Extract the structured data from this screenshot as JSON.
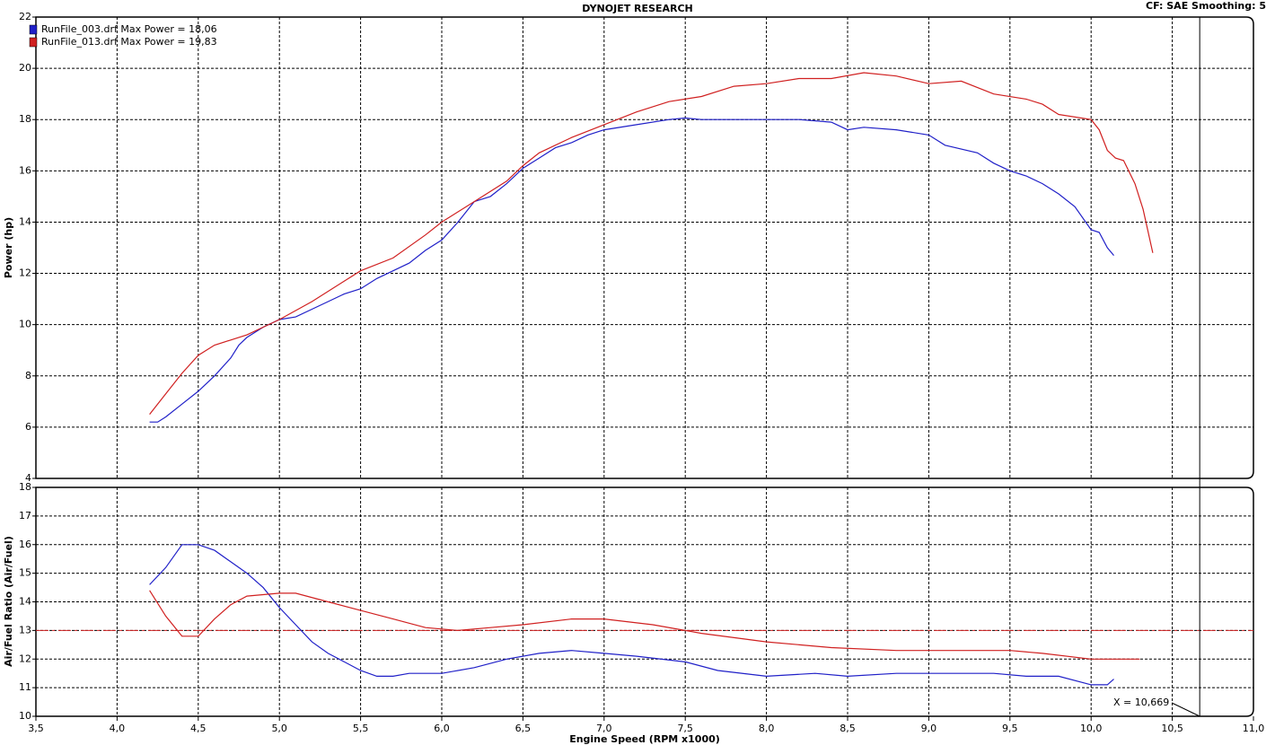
{
  "header": {
    "title": "DYNOJET RESEARCH",
    "settings": "CF: SAE  Smoothing: 5"
  },
  "cursor": {
    "value": 10.669,
    "label": "X = 10,669"
  },
  "chart_data": [
    {
      "type": "line",
      "ylabel": "Power (hp)",
      "ylim": [
        4,
        22
      ],
      "yticks": [
        4,
        6,
        8,
        10,
        12,
        14,
        16,
        18,
        20,
        22
      ],
      "grid": true,
      "series": [
        {
          "name": "RunFile_003.drf Max Power = 18,06",
          "color": "#2020c8",
          "x": [
            4.2,
            4.25,
            4.3,
            4.4,
            4.5,
            4.6,
            4.7,
            4.75,
            4.8,
            4.9,
            5.0,
            5.1,
            5.2,
            5.3,
            5.4,
            5.5,
            5.6,
            5.7,
            5.8,
            5.9,
            6.0,
            6.1,
            6.2,
            6.3,
            6.4,
            6.5,
            6.6,
            6.7,
            6.8,
            6.9,
            7.0,
            7.2,
            7.4,
            7.5,
            7.6,
            7.8,
            8.0,
            8.2,
            8.4,
            8.5,
            8.6,
            8.8,
            9.0,
            9.1,
            9.3,
            9.4,
            9.5,
            9.6,
            9.7,
            9.8,
            9.9,
            10.0,
            10.05,
            10.1,
            10.14
          ],
          "values": [
            6.2,
            6.2,
            6.4,
            6.9,
            7.4,
            8.0,
            8.7,
            9.2,
            9.5,
            9.9,
            10.2,
            10.3,
            10.6,
            10.9,
            11.2,
            11.4,
            11.8,
            12.1,
            12.4,
            12.9,
            13.3,
            14.0,
            14.8,
            15.0,
            15.5,
            16.1,
            16.5,
            16.9,
            17.1,
            17.4,
            17.6,
            17.8,
            18.0,
            18.06,
            18.0,
            18.0,
            18.0,
            18.0,
            17.9,
            17.6,
            17.7,
            17.6,
            17.4,
            17.0,
            16.7,
            16.3,
            16.0,
            15.8,
            15.5,
            15.1,
            14.6,
            13.7,
            13.6,
            13.0,
            12.7
          ]
        },
        {
          "name": "RunFile_013.drf Max Power = 19,83",
          "color": "#d02020",
          "x": [
            4.2,
            4.3,
            4.4,
            4.5,
            4.6,
            4.7,
            4.8,
            4.9,
            5.0,
            5.2,
            5.4,
            5.5,
            5.7,
            5.9,
            6.0,
            6.2,
            6.4,
            6.5,
            6.6,
            6.8,
            7.0,
            7.2,
            7.4,
            7.6,
            7.8,
            8.0,
            8.2,
            8.4,
            8.6,
            8.8,
            9.0,
            9.2,
            9.4,
            9.6,
            9.7,
            9.8,
            10.0,
            10.05,
            10.1,
            10.15,
            10.2,
            10.27,
            10.32,
            10.38
          ],
          "values": [
            6.5,
            7.3,
            8.1,
            8.8,
            9.2,
            9.4,
            9.6,
            9.9,
            10.2,
            10.9,
            11.7,
            12.1,
            12.6,
            13.5,
            14.0,
            14.8,
            15.6,
            16.2,
            16.7,
            17.3,
            17.8,
            18.3,
            18.7,
            18.9,
            19.3,
            19.4,
            19.6,
            19.6,
            19.83,
            19.7,
            19.4,
            19.5,
            19.0,
            18.8,
            18.6,
            18.2,
            18.0,
            17.6,
            16.8,
            16.5,
            16.4,
            15.5,
            14.5,
            12.8
          ]
        }
      ]
    },
    {
      "type": "line",
      "ylabel": "Air/Fuel Ratio (Air/Fuel)",
      "xlabel": "Engine Speed (RPM x1000)",
      "xlim": [
        3.5,
        11.0
      ],
      "xticks": [
        {
          "value": 3.5,
          "label": "3,5"
        },
        {
          "value": 4.0,
          "label": "4,0"
        },
        {
          "value": 4.5,
          "label": "4,5"
        },
        {
          "value": 5.0,
          "label": "5,0"
        },
        {
          "value": 5.5,
          "label": "5,5"
        },
        {
          "value": 6.0,
          "label": "6,0"
        },
        {
          "value": 6.5,
          "label": "6,5"
        },
        {
          "value": 7.0,
          "label": "7,0"
        },
        {
          "value": 7.5,
          "label": "7,5"
        },
        {
          "value": 8.0,
          "label": "8,0"
        },
        {
          "value": 8.5,
          "label": "8,5"
        },
        {
          "value": 9.0,
          "label": "9,0"
        },
        {
          "value": 9.5,
          "label": "9,5"
        },
        {
          "value": 10.0,
          "label": "10,0"
        },
        {
          "value": 10.5,
          "label": "10,5"
        },
        {
          "value": 11.0,
          "label": "11,0"
        }
      ],
      "ylim": [
        10,
        18
      ],
      "yticks": [
        10,
        11,
        12,
        13,
        14,
        15,
        16,
        17,
        18
      ],
      "grid": true,
      "reference_line": {
        "value": 13,
        "color": "#d02020"
      },
      "series": [
        {
          "name": "RunFile_003.drf",
          "color": "#2020c8",
          "x": [
            4.2,
            4.3,
            4.4,
            4.5,
            4.6,
            4.7,
            4.8,
            4.9,
            5.0,
            5.1,
            5.2,
            5.3,
            5.4,
            5.5,
            5.6,
            5.7,
            5.8,
            6.0,
            6.2,
            6.4,
            6.6,
            6.8,
            7.0,
            7.2,
            7.5,
            7.7,
            8.0,
            8.3,
            8.5,
            8.8,
            9.0,
            9.2,
            9.4,
            9.6,
            9.8,
            10.0,
            10.1,
            10.14
          ],
          "values": [
            14.6,
            15.2,
            16.0,
            16.0,
            15.8,
            15.4,
            15.0,
            14.5,
            13.8,
            13.2,
            12.6,
            12.2,
            11.9,
            11.6,
            11.4,
            11.4,
            11.5,
            11.5,
            11.7,
            12.0,
            12.2,
            12.3,
            12.2,
            12.1,
            11.9,
            11.6,
            11.4,
            11.5,
            11.4,
            11.5,
            11.5,
            11.5,
            11.5,
            11.4,
            11.4,
            11.1,
            11.1,
            11.3
          ]
        },
        {
          "name": "RunFile_013.drf",
          "color": "#d02020",
          "x": [
            4.2,
            4.3,
            4.4,
            4.5,
            4.6,
            4.7,
            4.8,
            5.0,
            5.1,
            5.3,
            5.5,
            5.7,
            5.9,
            6.1,
            6.3,
            6.5,
            6.8,
            7.0,
            7.3,
            7.6,
            8.0,
            8.4,
            8.8,
            9.2,
            9.5,
            9.7,
            10.0,
            10.2,
            10.3
          ],
          "values": [
            14.4,
            13.5,
            12.8,
            12.8,
            13.4,
            13.9,
            14.2,
            14.3,
            14.3,
            14.0,
            13.7,
            13.4,
            13.1,
            13.0,
            13.1,
            13.2,
            13.4,
            13.4,
            13.2,
            12.9,
            12.6,
            12.4,
            12.3,
            12.3,
            12.3,
            12.2,
            12.0,
            12.0,
            12.0
          ]
        }
      ]
    }
  ]
}
